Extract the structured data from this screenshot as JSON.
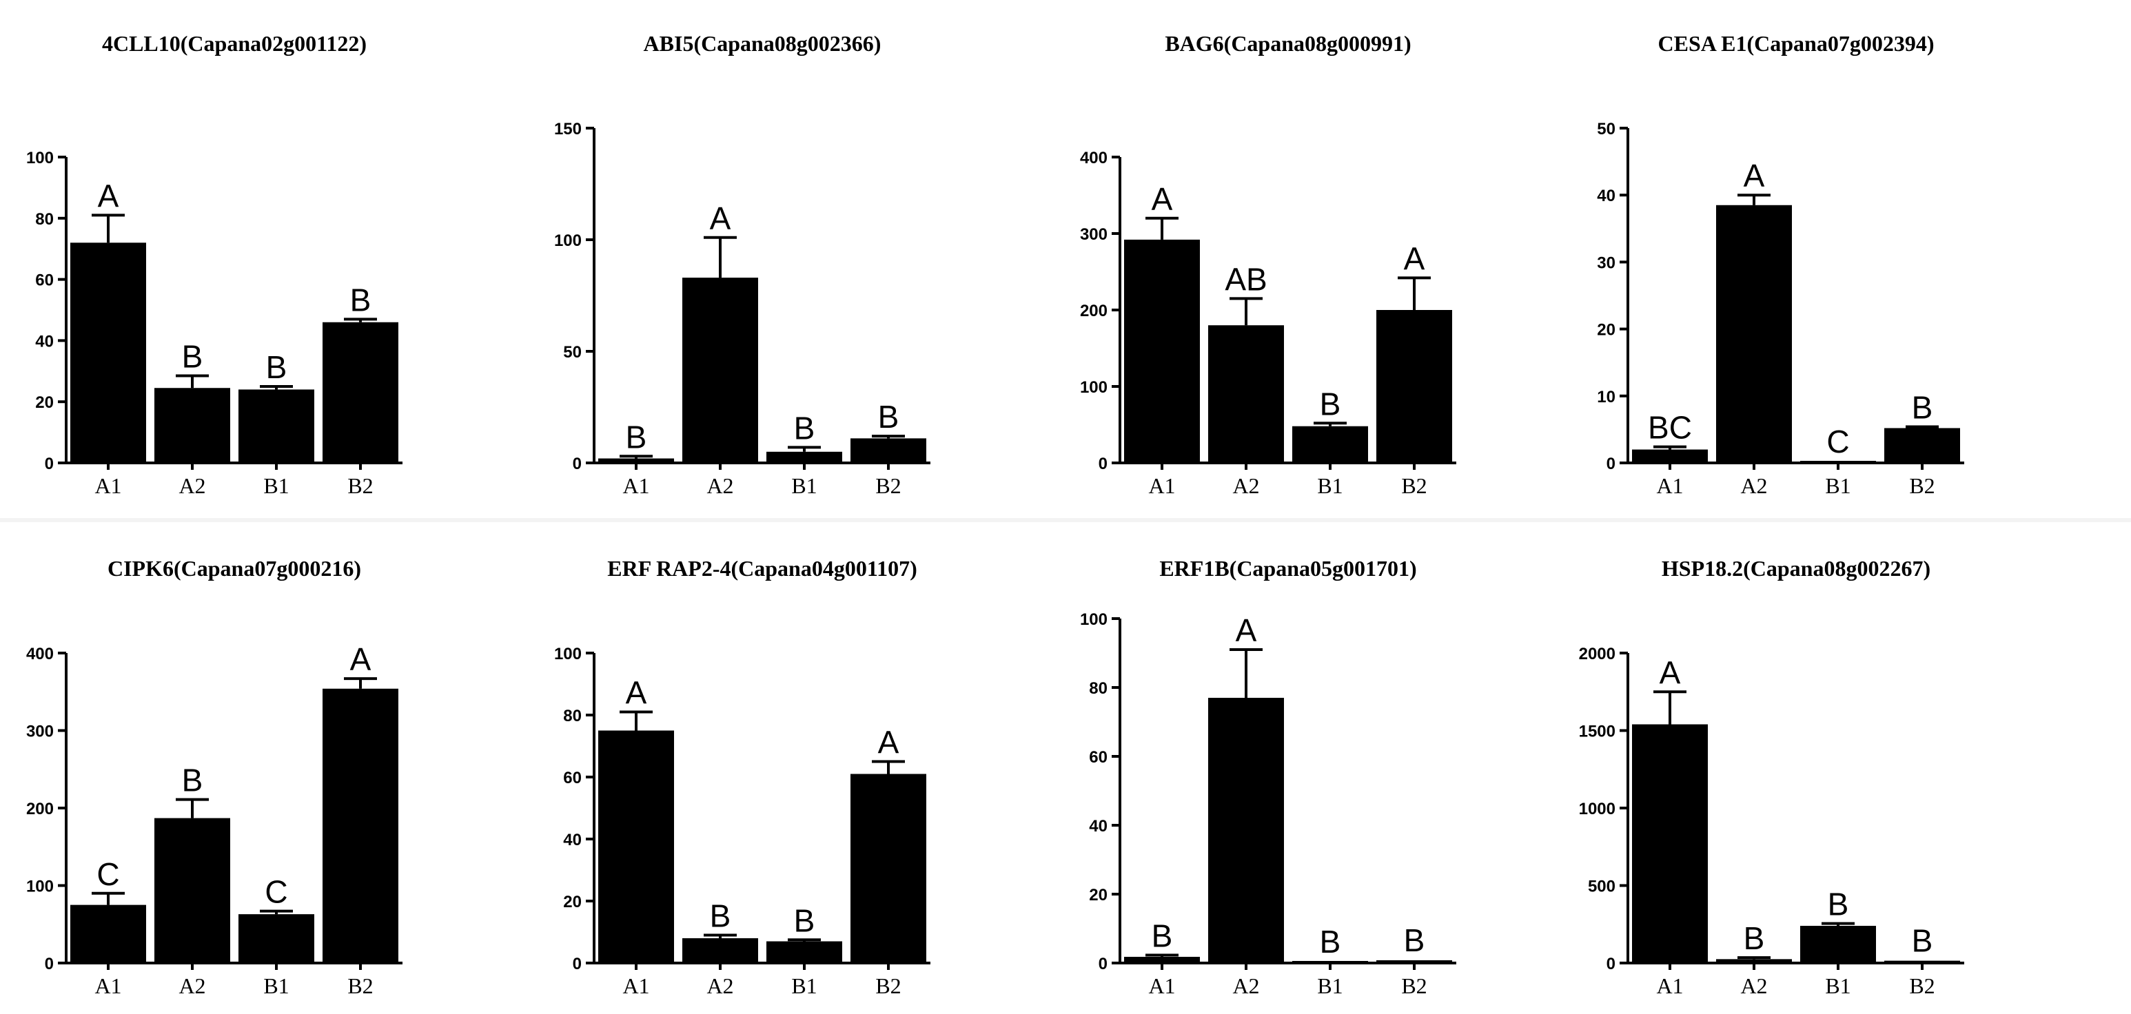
{
  "chart_data": [
    {
      "type": "bar",
      "title": "4CLL10(Capana02g001122)",
      "categories": [
        "A1",
        "A2",
        "B1",
        "B2"
      ],
      "values": [
        72,
        24.5,
        24,
        46
      ],
      "errors": [
        9,
        4,
        1,
        1
      ],
      "letters": [
        "A",
        "B",
        "B",
        "B"
      ],
      "ylim": [
        0,
        100
      ],
      "yticks": [
        "0",
        "20",
        "40",
        "60",
        "80",
        "100"
      ]
    },
    {
      "type": "bar",
      "title": "ABI5(Capana08g002366)",
      "categories": [
        "A1",
        "A2",
        "B1",
        "B2"
      ],
      "values": [
        2,
        83,
        5,
        11
      ],
      "errors": [
        1,
        18,
        2,
        1
      ],
      "letters": [
        "B",
        "A",
        "B",
        "B"
      ],
      "ylim": [
        0,
        150
      ],
      "yticks": [
        "0",
        "50",
        "100",
        "150"
      ]
    },
    {
      "type": "bar",
      "title": "BAG6(Capana08g000991)",
      "categories": [
        "A1",
        "A2",
        "B1",
        "B2"
      ],
      "values": [
        292,
        180,
        48,
        200
      ],
      "errors": [
        28,
        35,
        4,
        42
      ],
      "letters": [
        "A",
        "AB",
        "B",
        "A"
      ],
      "ylim": [
        0,
        400
      ],
      "yticks": [
        "0",
        "100",
        "200",
        "300",
        "400"
      ]
    },
    {
      "type": "bar",
      "title": "CESA E1(Capana07g002394)",
      "categories": [
        "A1",
        "A2",
        "B1",
        "B2"
      ],
      "values": [
        2,
        38.5,
        0.2,
        5.2
      ],
      "errors": [
        0.4,
        1.5,
        0.1,
        0.2
      ],
      "letters": [
        "BC",
        "A",
        "C",
        "B"
      ],
      "ylim": [
        0,
        50
      ],
      "yticks": [
        "0",
        "10",
        "20",
        "30",
        "40",
        "50"
      ]
    },
    {
      "type": "bar",
      "title": "CIPK6(Capana07g000216)",
      "categories": [
        "A1",
        "A2",
        "B1",
        "B2"
      ],
      "values": [
        75,
        187,
        63,
        354
      ],
      "errors": [
        15,
        24,
        4,
        13
      ],
      "letters": [
        "C",
        "B",
        "C",
        "A"
      ],
      "ylim": [
        0,
        400
      ],
      "yticks": [
        "0",
        "100",
        "200",
        "300",
        "400"
      ]
    },
    {
      "type": "bar",
      "title": "ERF RAP2-4(Capana04g001107)",
      "categories": [
        "A1",
        "A2",
        "B1",
        "B2"
      ],
      "values": [
        75,
        8,
        7,
        61
      ],
      "errors": [
        6,
        1,
        0.5,
        4
      ],
      "letters": [
        "A",
        "B",
        "B",
        "A"
      ],
      "ylim": [
        0,
        100
      ],
      "yticks": [
        "0",
        "20",
        "40",
        "60",
        "80",
        "100"
      ]
    },
    {
      "type": "bar",
      "title": "ERF1B(Capana05g001701)",
      "categories": [
        "A1",
        "A2",
        "B1",
        "B2"
      ],
      "values": [
        1.8,
        77,
        0.3,
        0.8
      ],
      "errors": [
        0.5,
        14,
        0.2,
        0.2
      ],
      "letters": [
        "B",
        "A",
        "B",
        "B"
      ],
      "ylim": [
        0,
        100
      ],
      "yticks": [
        "0",
        "20",
        "40",
        "60",
        "80",
        "100"
      ]
    },
    {
      "type": "bar",
      "title": "HSP18.2(Capana08g002267)",
      "categories": [
        "A1",
        "A2",
        "B1",
        "B2"
      ],
      "values": [
        1540,
        25,
        240,
        15
      ],
      "errors": [
        210,
        10,
        15,
        5
      ],
      "letters": [
        "A",
        "B",
        "B",
        "B"
      ],
      "ylim": [
        0,
        2000
      ],
      "yticks": [
        "0",
        "500",
        "1000",
        "1500",
        "2000"
      ]
    }
  ]
}
